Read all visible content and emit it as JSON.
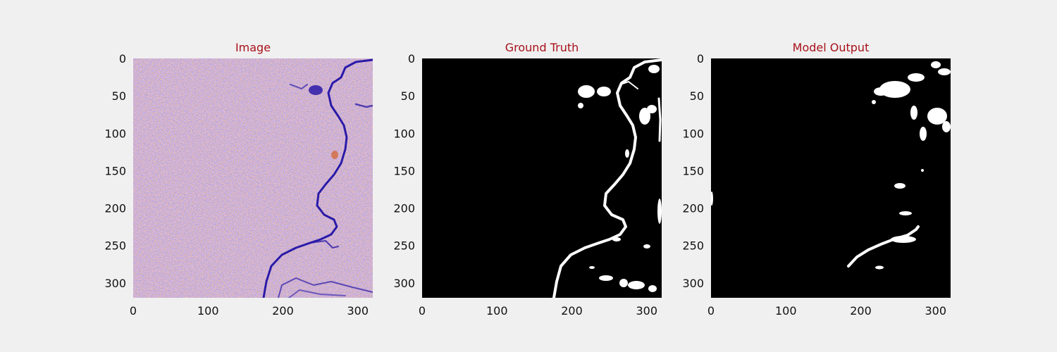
{
  "figure": {
    "background": "#f0f0f0",
    "title_color": "#a8101a"
  },
  "chart_data": [
    {
      "type": "heatmap",
      "title": "Image",
      "xlabel": "",
      "ylabel": "",
      "xlim": [
        0,
        320
      ],
      "ylim": [
        320,
        0
      ],
      "xticks": [
        0,
        100,
        200,
        300
      ],
      "yticks": [
        0,
        50,
        100,
        150,
        200,
        250,
        300
      ],
      "content": "SAR image, purple/orange speckle texture with a dark blue river channel",
      "colors": {
        "speckle_a": "#b98a7a",
        "speckle_b": "#7f86c8",
        "river": "#2a1aa8"
      }
    },
    {
      "type": "heatmap",
      "title": "Ground Truth",
      "xlabel": "",
      "ylabel": "",
      "xlim": [
        0,
        320
      ],
      "ylim": [
        320,
        0
      ],
      "xticks": [
        0,
        100,
        200,
        300
      ],
      "yticks": [
        0,
        50,
        100,
        150,
        200,
        250,
        300
      ],
      "content": "binary water mask (white = water, black = background)",
      "colors": {
        "background": "#000000",
        "water": "#ffffff"
      }
    },
    {
      "type": "heatmap",
      "title": "Model Output",
      "xlabel": "",
      "ylabel": "",
      "xlim": [
        0,
        320
      ],
      "ylim": [
        320,
        0
      ],
      "xticks": [
        0,
        100,
        200,
        300
      ],
      "yticks": [
        0,
        50,
        100,
        150,
        200,
        250,
        300
      ],
      "content": "predicted binary water mask (white = water, black = background)",
      "colors": {
        "background": "#000000",
        "water": "#ffffff"
      }
    }
  ]
}
